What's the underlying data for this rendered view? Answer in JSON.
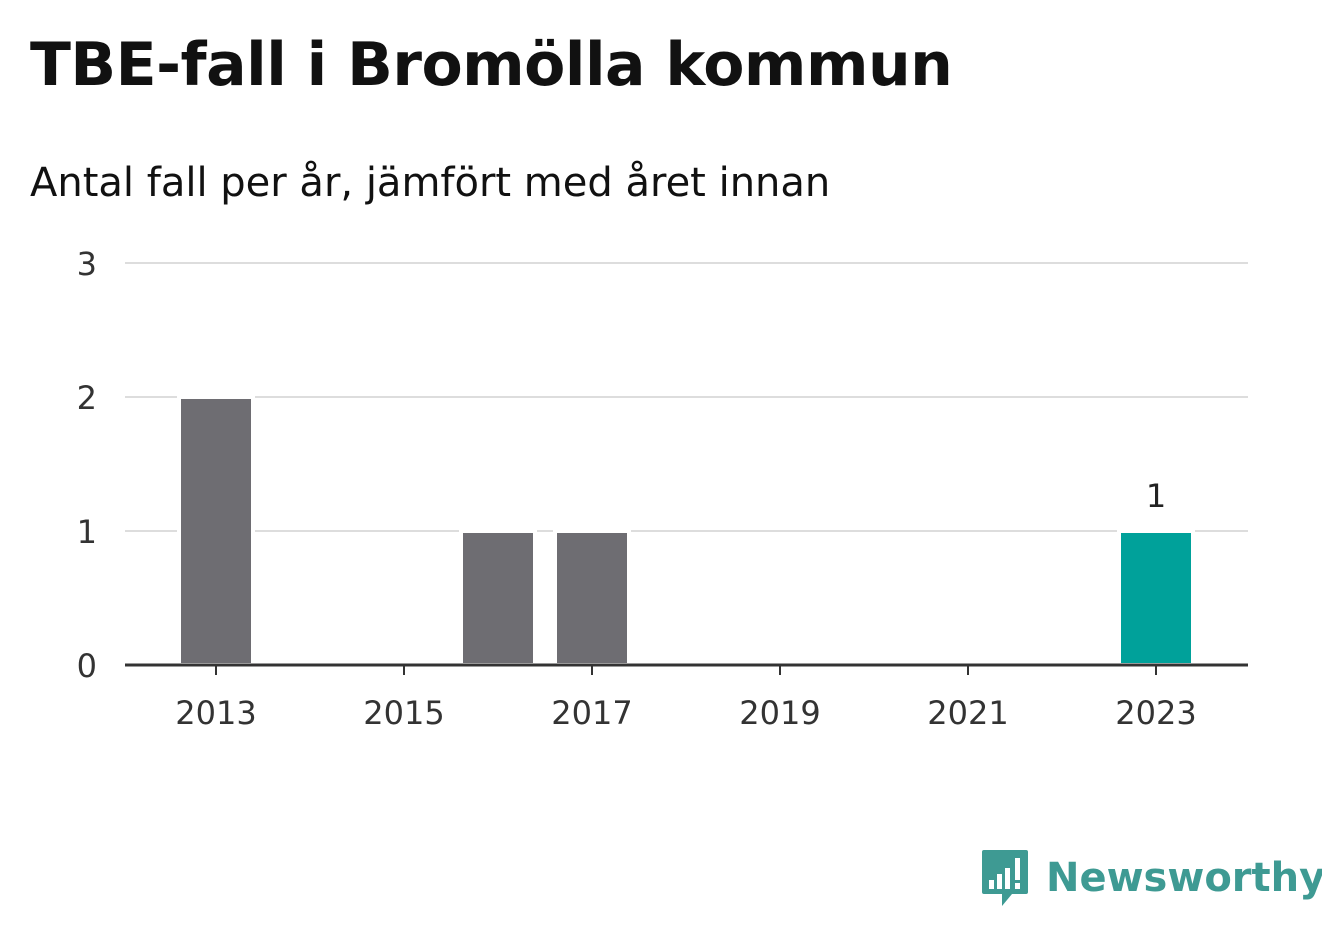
{
  "header": {
    "title": "TBE-fall i Bromölla kommun",
    "subtitle": "Antal fall per år, jämfört med året innan"
  },
  "brand": {
    "name": "Newsworthy",
    "icon": "newsworthy-logo-icon",
    "color": "#3e9a93"
  },
  "colors": {
    "bar_default": "#6e6d72",
    "bar_highlight": "#00a19a",
    "grid": "#dddddd",
    "axis": "#333333"
  },
  "chart_data": {
    "type": "bar",
    "title": "TBE-fall i Bromölla kommun",
    "subtitle": "Antal fall per år, jämfört med året innan",
    "xlabel": "",
    "ylabel": "",
    "categories": [
      "2013",
      "2014",
      "2015",
      "2016",
      "2017",
      "2018",
      "2019",
      "2020",
      "2021",
      "2022",
      "2023"
    ],
    "values": [
      2,
      0,
      0,
      1,
      1,
      0,
      0,
      0,
      0,
      0,
      1
    ],
    "highlight_category": "2023",
    "data_labels": [
      {
        "category": "2023",
        "text": "1"
      }
    ],
    "x_tick_labels": [
      "2013",
      "2015",
      "2017",
      "2019",
      "2021",
      "2023"
    ],
    "y_ticks": [
      0,
      1,
      2,
      3
    ],
    "ylim": [
      0,
      3
    ],
    "grid": true,
    "legend": "none"
  }
}
